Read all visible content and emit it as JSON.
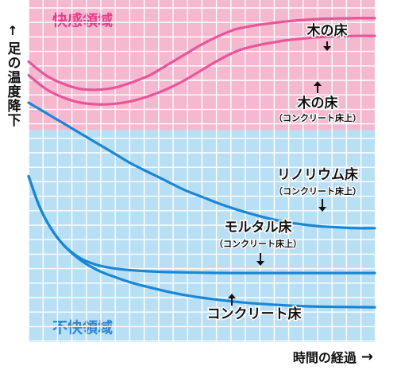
{
  "chart_data": {
    "type": "line",
    "xlabel": "時間の経過",
    "ylabel": "足の温度降下",
    "x_arrow": "→",
    "y_arrow": "↑",
    "zones": [
      {
        "name": "快感領域",
        "color": "#f4b8cf",
        "label_color": "#e0408a",
        "y_range": [
          0,
          0.38
        ]
      },
      {
        "name": "不快領域",
        "color": "#b9dff4",
        "label_color": "#2a86d8",
        "y_range": [
          0.38,
          1
        ]
      }
    ],
    "series": [
      {
        "name": "木の床",
        "sublabel": "",
        "color": "#e8559a",
        "x": [
          0,
          0.05,
          0.1,
          0.15,
          0.2,
          0.25,
          0.3,
          0.35,
          0.4,
          0.45,
          0.5,
          0.55,
          0.6,
          0.65,
          0.7,
          0.75,
          0.8,
          0.85,
          0.9,
          0.95,
          1.0
        ],
        "y": [
          0.18,
          0.22,
          0.245,
          0.26,
          0.262,
          0.256,
          0.24,
          0.22,
          0.19,
          0.16,
          0.13,
          0.105,
          0.085,
          0.075,
          0.068,
          0.062,
          0.058,
          0.055,
          0.054,
          0.053,
          0.053
        ]
      },
      {
        "name": "木の床",
        "sublabel": "（コンクリート床上）",
        "color": "#e8559a",
        "x": [
          0,
          0.05,
          0.1,
          0.15,
          0.2,
          0.25,
          0.3,
          0.35,
          0.4,
          0.45,
          0.5,
          0.55,
          0.6,
          0.65,
          0.7,
          0.75,
          0.8,
          0.85,
          0.9,
          0.95,
          1.0
        ],
        "y": [
          0.22,
          0.26,
          0.285,
          0.3,
          0.305,
          0.303,
          0.295,
          0.28,
          0.26,
          0.235,
          0.205,
          0.175,
          0.15,
          0.135,
          0.125,
          0.117,
          0.112,
          0.108,
          0.106,
          0.105,
          0.105
        ]
      },
      {
        "name": "リノリウム床",
        "sublabel": "（コンクリート床上）",
        "color": "#1a86d6",
        "x": [
          0,
          0.05,
          0.1,
          0.15,
          0.2,
          0.25,
          0.3,
          0.35,
          0.4,
          0.45,
          0.5,
          0.55,
          0.6,
          0.65,
          0.7,
          0.75,
          0.8,
          0.85,
          0.9,
          0.95,
          1.0
        ],
        "y": [
          0.3,
          0.33,
          0.36,
          0.39,
          0.42,
          0.45,
          0.48,
          0.505,
          0.53,
          0.555,
          0.575,
          0.595,
          0.612,
          0.627,
          0.64,
          0.65,
          0.657,
          0.662,
          0.665,
          0.667,
          0.667
        ]
      },
      {
        "name": "モルタル床",
        "sublabel": "（コンクリート床上）",
        "color": "#1a86d6",
        "x": [
          0,
          0.03,
          0.06,
          0.1,
          0.15,
          0.2,
          0.25,
          0.3,
          0.35,
          0.4,
          0.5,
          0.6,
          0.7,
          0.8,
          0.9,
          1.0
        ],
        "y": [
          0.515,
          0.6,
          0.66,
          0.715,
          0.755,
          0.775,
          0.785,
          0.79,
          0.793,
          0.795,
          0.797,
          0.798,
          0.798,
          0.798,
          0.798,
          0.798
        ]
      },
      {
        "name": "コンクリート床",
        "sublabel": "",
        "color": "#1a86d6",
        "x": [
          0,
          0.03,
          0.06,
          0.1,
          0.15,
          0.2,
          0.25,
          0.3,
          0.35,
          0.4,
          0.45,
          0.5,
          0.6,
          0.7,
          0.8,
          0.9,
          1.0
        ],
        "y": [
          0.515,
          0.6,
          0.66,
          0.715,
          0.76,
          0.79,
          0.81,
          0.827,
          0.84,
          0.852,
          0.862,
          0.87,
          0.882,
          0.89,
          0.895,
          0.897,
          0.898
        ]
      }
    ]
  }
}
